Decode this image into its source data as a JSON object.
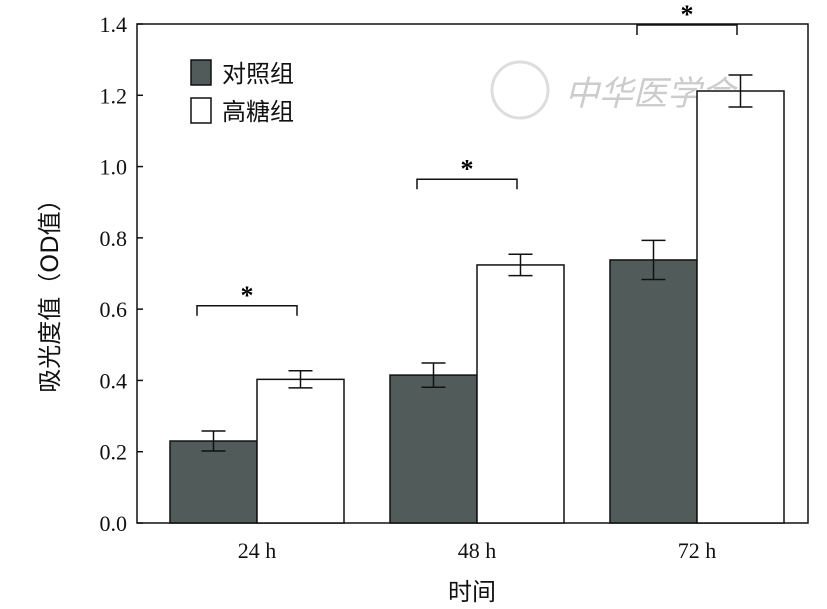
{
  "chart_data": {
    "type": "bar",
    "title": "",
    "xlabel": "时间",
    "ylabel": "吸光度值（OD值）",
    "categories": [
      "24 h",
      "48 h",
      "72 h"
    ],
    "ylim": [
      0,
      1.4
    ],
    "yticks": [
      "0.0",
      "0.2",
      "0.4",
      "0.6",
      "0.8",
      "1.0",
      "1.2",
      "1.4"
    ],
    "series": [
      {
        "name": "对照组",
        "color": "#515b5a",
        "values": [
          0.23,
          0.415,
          0.738
        ],
        "errors": [
          0.028,
          0.034,
          0.055
        ]
      },
      {
        "name": "高糖组",
        "color": "#ffffff",
        "values": [
          0.403,
          0.724,
          1.212
        ],
        "errors": [
          0.024,
          0.03,
          0.045
        ]
      }
    ],
    "significance_marker": "*",
    "legend_position": "top-left",
    "grid": false
  },
  "watermark": "中华医学会"
}
